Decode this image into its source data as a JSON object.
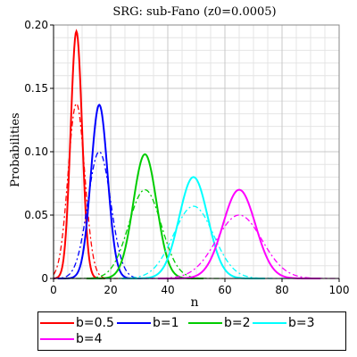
{
  "chart_data": {
    "type": "line",
    "title": "SRG: sub-Fano (z0=0.0005)",
    "xlabel": "n",
    "ylabel": "Probabilities",
    "xlim": [
      0,
      100
    ],
    "ylim": [
      0,
      0.2
    ],
    "xticks": [
      "0",
      "20",
      "40",
      "60",
      "80",
      "100"
    ],
    "yticks": [
      "0",
      "0.05",
      "0.10",
      "0.15",
      "0.20"
    ],
    "grid": true,
    "legend_position": "bottom",
    "series": [
      {
        "name": "b=0.5",
        "color": "#ff0000",
        "solid_peak": {
          "x": 8,
          "y": 0.195,
          "sigma": 2.0
        },
        "dashed_peak": {
          "x": 8,
          "y": 0.138,
          "sigma": 2.9
        }
      },
      {
        "name": "b=1",
        "color": "#0000ff",
        "solid_peak": {
          "x": 16,
          "y": 0.137,
          "sigma": 2.9
        },
        "dashed_peak": {
          "x": 16,
          "y": 0.1,
          "sigma": 4.0
        }
      },
      {
        "name": "b=2",
        "color": "#00cc00",
        "solid_peak": {
          "x": 32,
          "y": 0.098,
          "sigma": 4.1
        },
        "dashed_peak": {
          "x": 32,
          "y": 0.07,
          "sigma": 5.7
        }
      },
      {
        "name": "b=3",
        "color": "#00ffff",
        "solid_peak": {
          "x": 49,
          "y": 0.08,
          "sigma": 5.0
        },
        "dashed_peak": {
          "x": 49,
          "y": 0.057,
          "sigma": 7.0
        }
      },
      {
        "name": "b=4",
        "color": "#ff00ff",
        "solid_peak": {
          "x": 65,
          "y": 0.07,
          "sigma": 5.7
        },
        "dashed_peak": {
          "x": 65,
          "y": 0.05,
          "sigma": 8.0
        }
      }
    ]
  }
}
